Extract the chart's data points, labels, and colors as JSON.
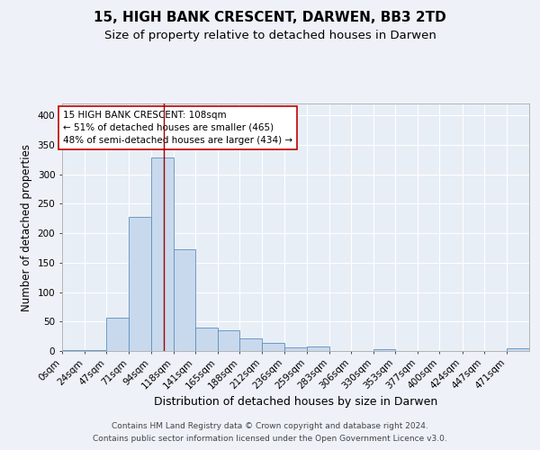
{
  "title1": "15, HIGH BANK CRESCENT, DARWEN, BB3 2TD",
  "title2": "Size of property relative to detached houses in Darwen",
  "xlabel": "Distribution of detached houses by size in Darwen",
  "ylabel": "Number of detached properties",
  "bar_labels": [
    "0sqm",
    "24sqm",
    "47sqm",
    "71sqm",
    "94sqm",
    "118sqm",
    "141sqm",
    "165sqm",
    "188sqm",
    "212sqm",
    "236sqm",
    "259sqm",
    "283sqm",
    "306sqm",
    "330sqm",
    "353sqm",
    "377sqm",
    "400sqm",
    "424sqm",
    "447sqm",
    "471sqm"
  ],
  "bar_heights": [
    2,
    2,
    57,
    228,
    328,
    172,
    39,
    35,
    22,
    13,
    6,
    7,
    0,
    0,
    3,
    0,
    0,
    0,
    0,
    0,
    4
  ],
  "bin_edges": [
    0,
    24,
    47,
    71,
    94,
    118,
    141,
    165,
    188,
    212,
    236,
    259,
    283,
    306,
    330,
    353,
    377,
    400,
    424,
    447,
    471,
    495
  ],
  "bar_color": "#c9d9ed",
  "bar_edge_color": "#5c8fbd",
  "property_size": 108,
  "vline_color": "#a00000",
  "annotation_text": "15 HIGH BANK CRESCENT: 108sqm\n← 51% of detached houses are smaller (465)\n48% of semi-detached houses are larger (434) →",
  "annotation_box_color": "#ffffff",
  "annotation_box_edge": "#c00000",
  "ylim": [
    0,
    420
  ],
  "yticks": [
    0,
    50,
    100,
    150,
    200,
    250,
    300,
    350,
    400
  ],
  "footer1": "Contains HM Land Registry data © Crown copyright and database right 2024.",
  "footer2": "Contains public sector information licensed under the Open Government Licence v3.0.",
  "background_color": "#eef2f8",
  "plot_background": "#e8eef6",
  "grid_color": "#ffffff",
  "title1_fontsize": 11,
  "title2_fontsize": 9.5,
  "xlabel_fontsize": 9,
  "ylabel_fontsize": 8.5,
  "tick_fontsize": 7.5,
  "annotation_fontsize": 7.5,
  "footer_fontsize": 6.5
}
